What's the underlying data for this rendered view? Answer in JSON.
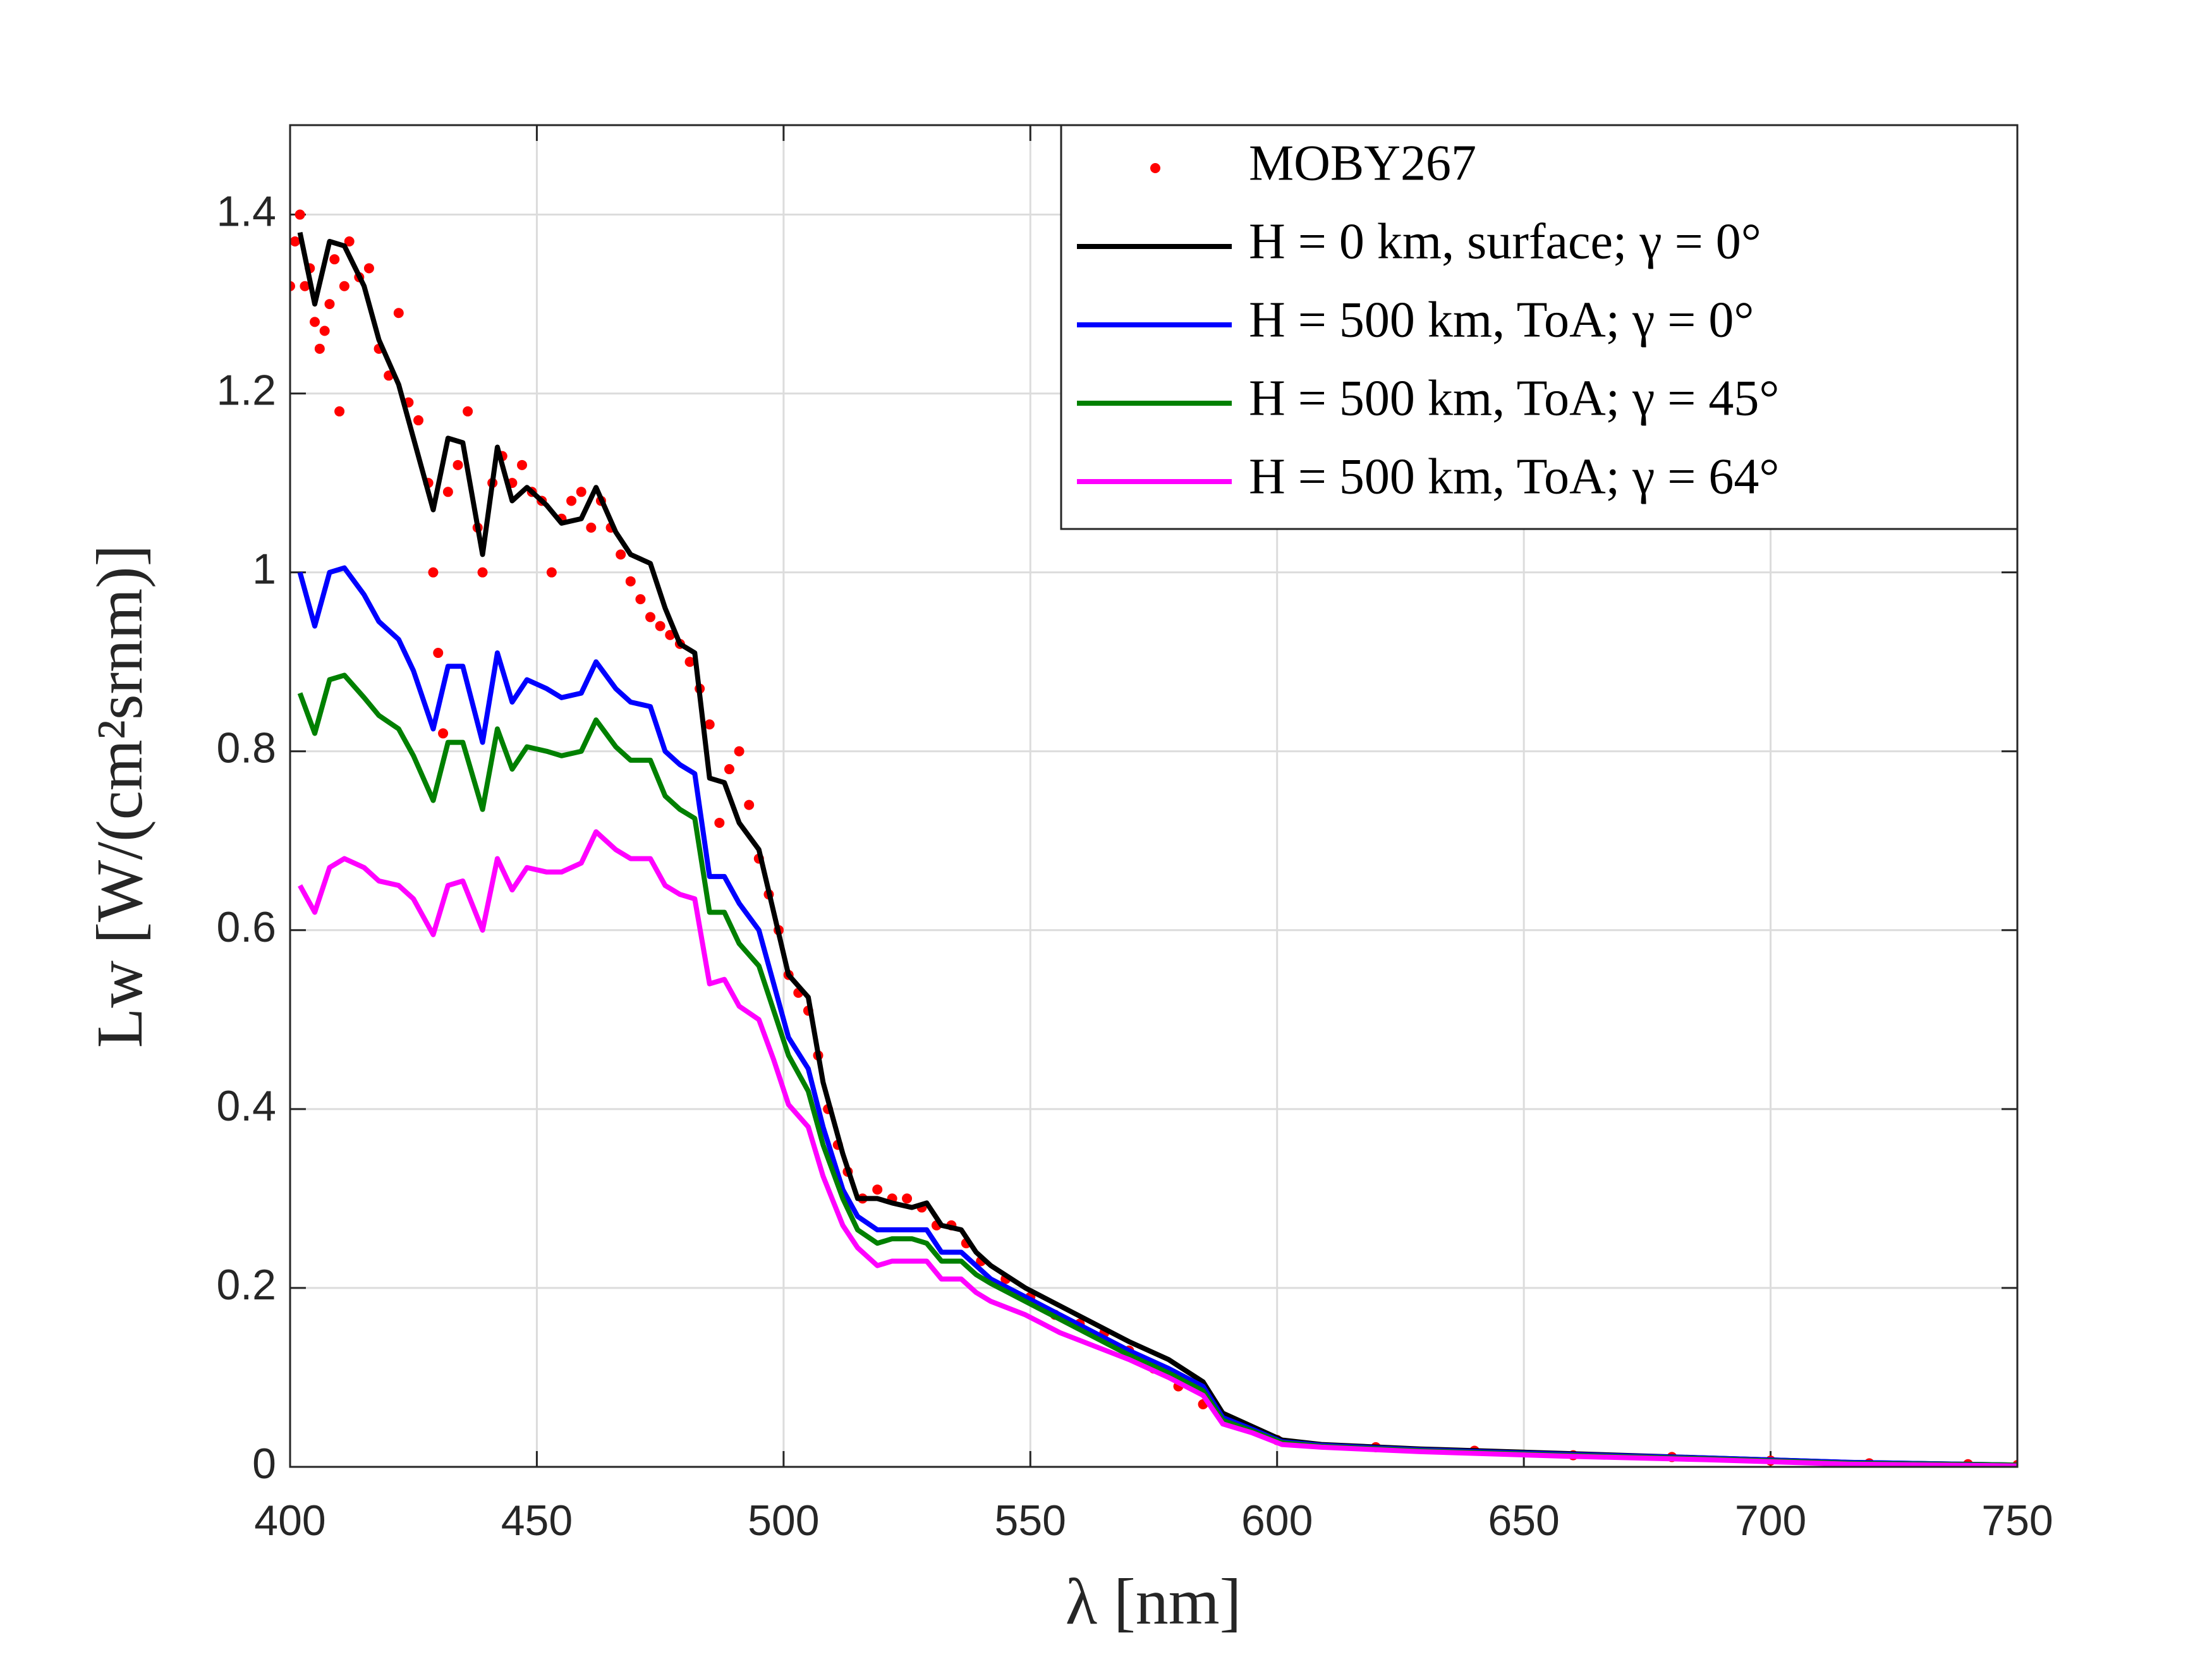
{
  "chart_data": {
    "type": "line",
    "x_label": "λ [nm]",
    "y_label": "Lw [W/(cm²srnm)]",
    "xlim": [
      400,
      750
    ],
    "xticks": [
      400,
      450,
      500,
      550,
      600,
      650,
      700,
      750
    ],
    "ylim": [
      0,
      1.5
    ],
    "yticks": [
      0,
      0.2,
      0.4,
      0.6,
      0.8,
      1,
      1.2,
      1.4
    ],
    "grid": true,
    "legend": "upper right",
    "x": [
      402,
      405,
      408,
      411,
      415,
      418,
      422,
      425,
      429,
      432,
      435,
      439,
      442,
      445,
      448,
      452,
      455,
      459,
      462,
      466,
      469,
      473,
      476,
      479,
      482,
      485,
      488,
      491,
      495,
      498,
      501,
      505,
      508,
      512,
      515,
      519,
      522,
      526,
      529,
      532,
      536,
      539,
      542,
      549,
      556,
      563,
      570,
      578,
      585,
      589,
      595,
      601,
      609,
      629,
      658,
      687,
      716,
      750
    ],
    "scatter": {
      "name": "MOBY267",
      "color": "#ff0000",
      "x": [
        400,
        401,
        402,
        403,
        404,
        405,
        406,
        407,
        408,
        409,
        410,
        411,
        412,
        414,
        416,
        418,
        420,
        422,
        424,
        426,
        428,
        429,
        430,
        431,
        432,
        434,
        436,
        438,
        439,
        441,
        443,
        445,
        447,
        449,
        451,
        453,
        455,
        457,
        459,
        461,
        463,
        465,
        467,
        469,
        471,
        473,
        475,
        477,
        479,
        481,
        483,
        485,
        487,
        489,
        491,
        493,
        495,
        497,
        499,
        501,
        503,
        505,
        507,
        509,
        511,
        513,
        516,
        519,
        522,
        525,
        528,
        531,
        534,
        537,
        540,
        545,
        550,
        555,
        560,
        565,
        570,
        575,
        580,
        585,
        590,
        600,
        620,
        640,
        660,
        680,
        700,
        720,
        740,
        750
      ],
      "values": [
        1.32,
        1.37,
        1.4,
        1.32,
        1.34,
        1.28,
        1.25,
        1.27,
        1.3,
        1.35,
        1.18,
        1.32,
        1.37,
        1.33,
        1.34,
        1.25,
        1.22,
        1.29,
        1.19,
        1.17,
        1.1,
        1.0,
        0.91,
        0.82,
        1.09,
        1.12,
        1.18,
        1.05,
        1.0,
        1.1,
        1.13,
        1.1,
        1.12,
        1.09,
        1.08,
        1.0,
        1.06,
        1.08,
        1.09,
        1.05,
        1.08,
        1.05,
        1.02,
        0.99,
        0.97,
        0.95,
        0.94,
        0.93,
        0.92,
        0.9,
        0.87,
        0.83,
        0.72,
        0.78,
        0.8,
        0.74,
        0.68,
        0.64,
        0.6,
        0.55,
        0.53,
        0.51,
        0.46,
        0.4,
        0.36,
        0.33,
        0.3,
        0.31,
        0.3,
        0.3,
        0.29,
        0.27,
        0.27,
        0.25,
        0.23,
        0.21,
        0.19,
        0.17,
        0.16,
        0.15,
        0.13,
        0.11,
        0.09,
        0.07,
        0.05,
        0.03,
        0.022,
        0.018,
        0.013,
        0.011,
        0.007,
        0.004,
        0.003,
        0.002
      ]
    },
    "series": [
      {
        "name": "H = 0 km, surface; γ = 0°",
        "color": "#000000",
        "values": [
          1.38,
          1.3,
          1.37,
          1.365,
          1.32,
          1.26,
          1.21,
          1.15,
          1.07,
          1.15,
          1.145,
          1.02,
          1.14,
          1.08,
          1.095,
          1.075,
          1.055,
          1.06,
          1.095,
          1.045,
          1.02,
          1.01,
          0.96,
          0.92,
          0.91,
          0.77,
          0.765,
          0.72,
          0.69,
          0.62,
          0.55,
          0.525,
          0.43,
          0.35,
          0.3,
          0.3,
          0.295,
          0.29,
          0.295,
          0.27,
          0.265,
          0.24,
          0.225,
          0.2,
          0.18,
          0.16,
          0.14,
          0.12,
          0.095,
          0.06,
          0.045,
          0.03,
          0.025,
          0.02,
          0.015,
          0.01,
          0.005,
          0.002
        ]
      },
      {
        "name": "H = 500 km, ToA; γ = 0°",
        "color": "#0000ff",
        "values": [
          1.0,
          0.94,
          1.0,
          1.005,
          0.975,
          0.945,
          0.925,
          0.89,
          0.825,
          0.895,
          0.895,
          0.81,
          0.91,
          0.855,
          0.88,
          0.87,
          0.86,
          0.865,
          0.9,
          0.87,
          0.855,
          0.85,
          0.8,
          0.785,
          0.775,
          0.66,
          0.66,
          0.63,
          0.6,
          0.54,
          0.48,
          0.445,
          0.38,
          0.31,
          0.28,
          0.265,
          0.265,
          0.265,
          0.265,
          0.24,
          0.24,
          0.225,
          0.21,
          0.19,
          0.17,
          0.15,
          0.13,
          0.11,
          0.09,
          0.055,
          0.042,
          0.028,
          0.024,
          0.019,
          0.014,
          0.01,
          0.005,
          0.002
        ]
      },
      {
        "name": "H = 500 km, ToA; γ = 45°",
        "color": "#008000",
        "values": [
          0.865,
          0.82,
          0.88,
          0.885,
          0.86,
          0.84,
          0.825,
          0.795,
          0.745,
          0.81,
          0.81,
          0.735,
          0.825,
          0.78,
          0.805,
          0.8,
          0.795,
          0.8,
          0.835,
          0.805,
          0.79,
          0.79,
          0.75,
          0.735,
          0.725,
          0.62,
          0.62,
          0.585,
          0.56,
          0.51,
          0.46,
          0.42,
          0.36,
          0.3,
          0.265,
          0.25,
          0.255,
          0.255,
          0.25,
          0.23,
          0.23,
          0.215,
          0.205,
          0.185,
          0.165,
          0.145,
          0.125,
          0.105,
          0.085,
          0.052,
          0.04,
          0.027,
          0.023,
          0.018,
          0.013,
          0.009,
          0.004,
          0.002
        ]
      },
      {
        "name": "H = 500 km, ToA; γ = 64°",
        "color": "#ff00ff",
        "values": [
          0.65,
          0.62,
          0.67,
          0.68,
          0.67,
          0.655,
          0.65,
          0.635,
          0.595,
          0.65,
          0.655,
          0.6,
          0.68,
          0.645,
          0.67,
          0.665,
          0.665,
          0.675,
          0.71,
          0.69,
          0.68,
          0.68,
          0.65,
          0.64,
          0.635,
          0.54,
          0.545,
          0.515,
          0.5,
          0.455,
          0.405,
          0.38,
          0.325,
          0.27,
          0.245,
          0.225,
          0.23,
          0.23,
          0.23,
          0.21,
          0.21,
          0.195,
          0.185,
          0.17,
          0.15,
          0.135,
          0.12,
          0.1,
          0.08,
          0.048,
          0.038,
          0.025,
          0.022,
          0.017,
          0.012,
          0.008,
          0.003,
          0.001
        ]
      }
    ]
  }
}
